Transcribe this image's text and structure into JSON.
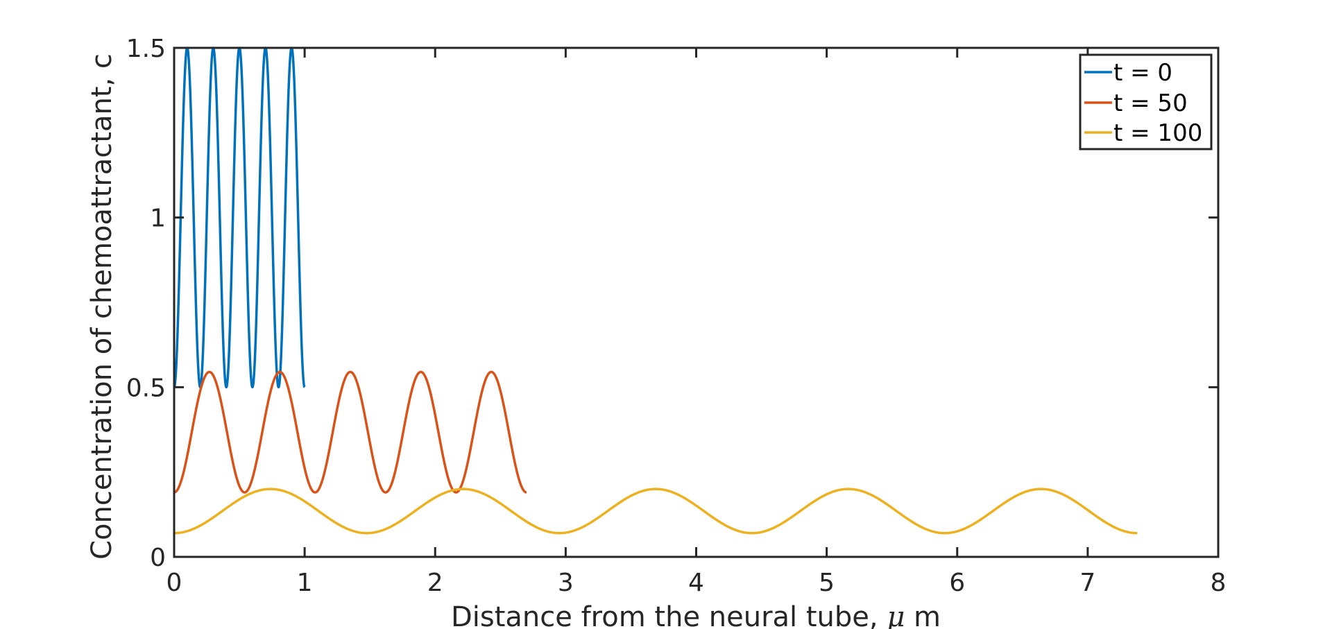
{
  "chart_data": {
    "type": "line",
    "title": "",
    "xlabel_prefix": "Distance from the neural tube, ",
    "xlabel_symbol": "μ",
    "xlabel_suffix": " m",
    "ylabel": "Concentration  of chemoattractant, c",
    "xlim": [
      0,
      8
    ],
    "ylim": [
      0,
      1.5
    ],
    "xticks": [
      0,
      1,
      2,
      3,
      4,
      5,
      6,
      7,
      8
    ],
    "xtick_labels": [
      "0",
      "1",
      "2",
      "3",
      "4",
      "5",
      "6",
      "7",
      "8"
    ],
    "yticks": [
      0,
      0.5,
      1,
      1.5
    ],
    "ytick_labels": [
      "0",
      "0.5",
      "1",
      "1.5"
    ],
    "grid": false,
    "legend_position": "top-right",
    "series": [
      {
        "name": "t = 0",
        "color": "#0072BD",
        "x_start": 0,
        "x_end": 1,
        "min": 0.5,
        "max": 1.5,
        "period": 0.2,
        "first_peak_x": 0.1,
        "starts_at": 0.5,
        "peaks_x": [
          0.1,
          0.3,
          0.5,
          0.7,
          0.9
        ]
      },
      {
        "name": "t = 50",
        "color": "#D95319",
        "x_start": 0,
        "x_end": 2.7,
        "min": 0.19,
        "max": 0.545,
        "period": 0.54,
        "first_peak_x": 0.27,
        "starts_at": 0.19,
        "peaks_x": [
          0.27,
          0.81,
          1.35,
          1.89,
          2.43
        ]
      },
      {
        "name": "t = 100",
        "color": "#EDB120",
        "x_start": 0,
        "x_end": 7.38,
        "min": 0.07,
        "max": 0.2,
        "period": 1.476,
        "first_peak_x": 0.738,
        "starts_at": 0.07,
        "peaks_x": [
          0.738,
          2.214,
          3.69,
          5.166,
          6.642
        ]
      }
    ]
  }
}
